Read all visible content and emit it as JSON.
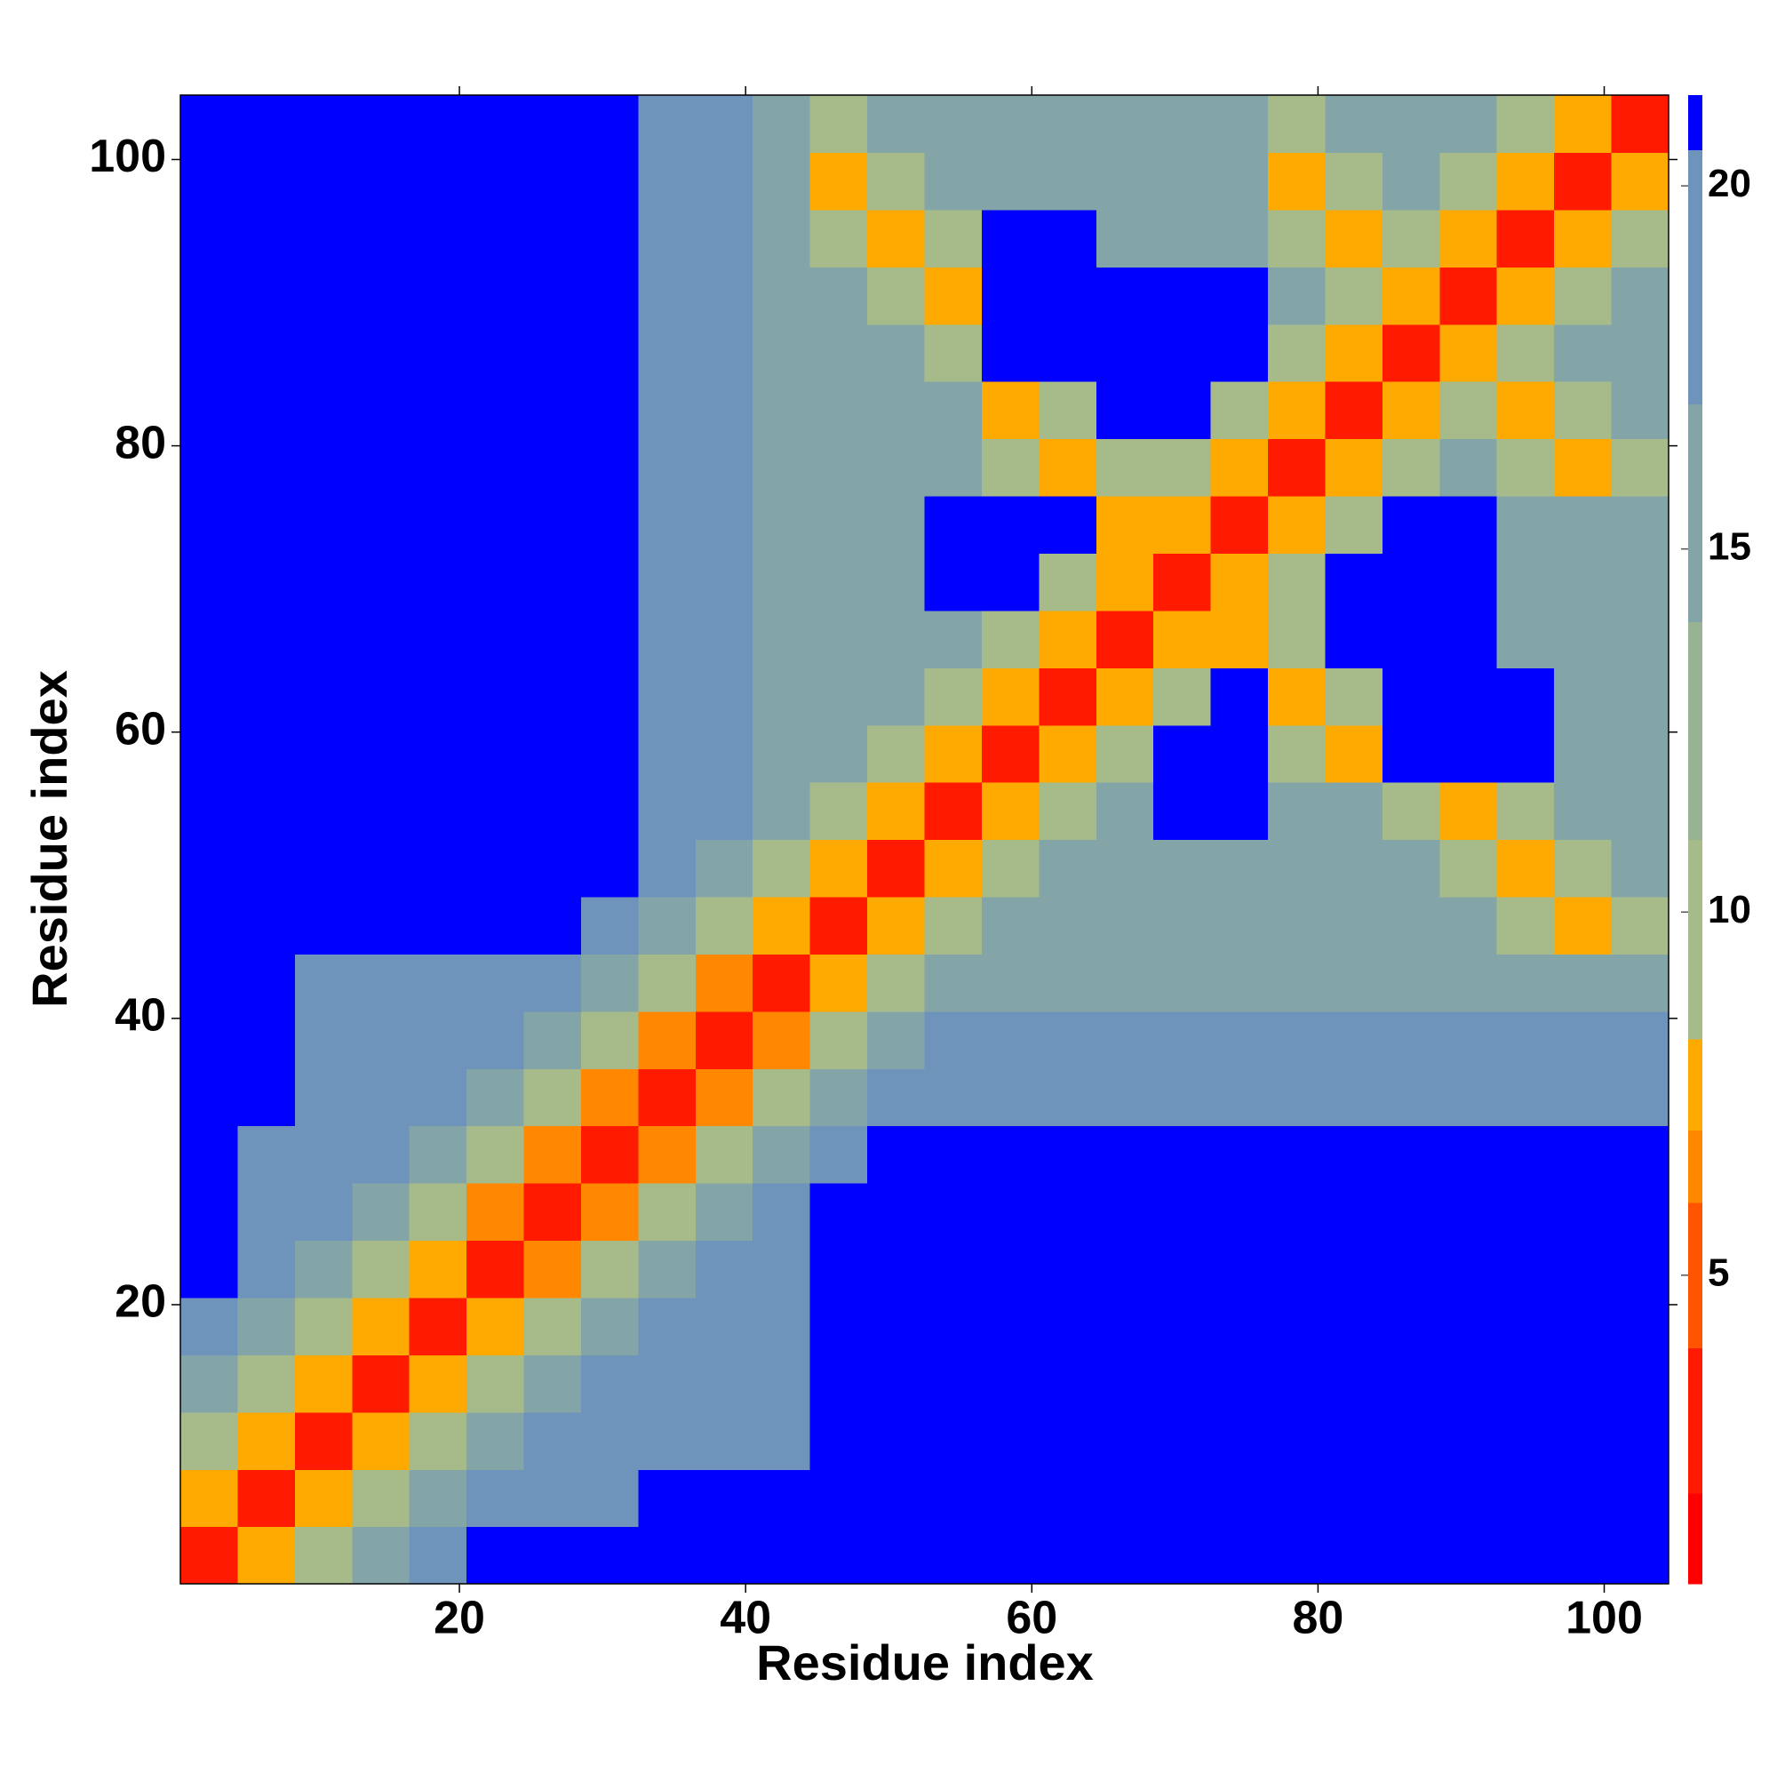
{
  "chart_data": {
    "type": "heatmap",
    "x_label": "Residue index",
    "y_label": "Residue index",
    "xlim": [
      0.5,
      104.5
    ],
    "ylim": [
      0.5,
      104.5
    ],
    "xticks": [
      20,
      40,
      60,
      80,
      100
    ],
    "yticks": [
      20,
      40,
      60,
      80,
      100
    ],
    "xbins": [
      0.5,
      4.5,
      8.5,
      12.5,
      16.5,
      20.5,
      24.5,
      28.5,
      32.5,
      36.5,
      40.5,
      44.5,
      48.5,
      52.5,
      56.5,
      60.5,
      64.5,
      68.5,
      72.5,
      76.5,
      80.5,
      84.5,
      88.5,
      92.5,
      96.5,
      100.5,
      104.5
    ],
    "ybins": [
      0.5,
      4.5,
      8.5,
      12.5,
      16.5,
      20.5,
      24.5,
      28.5,
      32.5,
      36.5,
      40.5,
      44.5,
      48.5,
      52.5,
      56.5,
      60.5,
      64.5,
      68.5,
      72.5,
      76.5,
      80.5,
      84.5,
      88.5,
      92.5,
      96.5,
      100.5,
      104.5
    ],
    "zlim": [
      0.75,
      21.25
    ],
    "zticks": [
      5,
      10,
      15,
      20
    ],
    "levels": [
      2,
      4,
      6,
      7,
      8.25,
      11,
      14,
      17,
      20.5
    ],
    "colors": [
      "#ff0000",
      "#ff1a00",
      "#ff5500",
      "#ff8800",
      "#ffaa00",
      "#a7bb8a",
      "#98b294",
      "#84a5a8",
      "#6f94bc",
      "#0000ff"
    ],
    "z": [
      [
        3,
        7.5,
        10,
        14,
        18,
        21,
        21,
        21,
        21,
        21,
        21,
        21,
        21,
        21,
        21,
        21,
        21,
        21,
        21,
        21,
        21,
        21,
        21,
        21,
        21,
        21
      ],
      [
        7.5,
        3,
        7.5,
        10,
        14,
        18,
        18,
        18,
        21,
        21,
        21,
        21,
        21,
        21,
        21,
        21,
        21,
        21,
        21,
        21,
        21,
        21,
        21,
        21,
        21,
        21
      ],
      [
        10,
        7.5,
        3,
        7.5,
        10,
        14,
        18,
        18,
        18,
        18,
        18,
        21,
        21,
        21,
        21,
        21,
        21,
        21,
        21,
        21,
        21,
        21,
        21,
        21,
        21,
        21
      ],
      [
        14,
        10,
        7.5,
        3,
        7.5,
        10,
        14,
        18,
        18,
        18,
        18,
        21,
        21,
        21,
        21,
        21,
        21,
        21,
        21,
        21,
        21,
        21,
        21,
        21,
        21,
        21
      ],
      [
        18,
        14,
        10,
        7.5,
        3,
        7.5,
        10,
        14,
        18,
        18,
        18,
        21,
        21,
        21,
        21,
        21,
        21,
        21,
        21,
        21,
        21,
        21,
        21,
        21,
        21,
        21
      ],
      [
        21,
        18,
        14,
        10,
        7.5,
        3,
        6,
        10,
        14,
        18,
        18,
        21,
        21,
        21,
        21,
        21,
        21,
        21,
        21,
        21,
        21,
        21,
        21,
        21,
        21,
        21
      ],
      [
        21,
        18,
        18,
        14,
        10,
        6,
        3,
        6,
        10,
        14,
        18,
        21,
        21,
        21,
        21,
        21,
        21,
        21,
        21,
        21,
        21,
        21,
        21,
        21,
        21,
        21
      ],
      [
        21,
        18,
        18,
        18,
        14,
        10,
        6,
        3,
        6,
        10,
        14,
        18,
        21,
        21,
        21,
        21,
        21,
        21,
        21,
        21,
        21,
        21,
        21,
        21,
        21,
        21
      ],
      [
        21,
        21,
        18,
        18,
        18,
        14,
        10,
        6,
        3,
        6,
        10,
        14,
        18,
        18,
        18,
        18,
        18,
        18,
        18,
        18,
        18,
        18,
        18,
        18,
        18,
        18
      ],
      [
        21,
        21,
        18,
        18,
        18,
        18,
        14,
        10,
        6,
        3,
        6,
        10,
        14,
        18,
        18,
        18,
        18,
        18,
        18,
        18,
        18,
        18,
        18,
        18,
        18,
        18
      ],
      [
        21,
        21,
        18,
        18,
        18,
        18,
        18,
        14,
        10,
        6,
        3,
        7.5,
        10,
        14,
        16,
        16,
        16,
        16,
        16,
        14,
        14,
        14,
        14,
        14,
        14,
        14
      ],
      [
        21,
        21,
        21,
        21,
        21,
        21,
        21,
        18,
        14,
        10,
        7.5,
        3,
        7.5,
        10,
        14,
        16,
        16,
        16,
        16,
        16,
        16,
        16,
        16,
        10,
        7.5,
        10
      ],
      [
        21,
        21,
        21,
        21,
        21,
        21,
        21,
        21,
        18,
        14,
        10,
        7.5,
        3,
        7.5,
        10,
        14,
        16,
        16,
        16,
        16,
        16,
        16,
        10,
        7.5,
        10,
        16
      ],
      [
        21,
        21,
        21,
        21,
        21,
        21,
        21,
        21,
        18,
        18,
        14,
        10,
        7.5,
        3,
        7.5,
        10,
        14,
        21,
        21,
        16,
        16,
        10,
        7.5,
        10,
        16,
        16
      ],
      [
        21,
        21,
        21,
        21,
        21,
        21,
        21,
        21,
        18,
        18,
        16,
        14,
        10,
        7.5,
        3,
        7.5,
        10,
        21,
        21,
        10,
        7.5,
        21,
        21,
        21,
        16,
        16
      ],
      [
        21,
        21,
        21,
        21,
        21,
        21,
        21,
        21,
        18,
        18,
        16,
        16,
        14,
        10,
        7.5,
        3,
        7.5,
        10,
        21,
        7.5,
        10,
        21,
        21,
        21,
        16,
        16
      ],
      [
        21,
        21,
        21,
        21,
        21,
        21,
        21,
        21,
        18,
        18,
        16,
        16,
        16,
        14,
        10,
        7.5,
        3,
        7.5,
        7.5,
        10,
        21,
        21,
        21,
        16,
        16,
        16
      ],
      [
        21,
        21,
        21,
        21,
        21,
        21,
        21,
        21,
        18,
        18,
        16,
        16,
        16,
        21,
        21,
        10,
        7.5,
        3,
        7.5,
        10,
        21,
        21,
        21,
        16,
        16,
        16
      ],
      [
        21,
        21,
        21,
        21,
        21,
        21,
        21,
        21,
        18,
        18,
        16,
        16,
        16,
        21,
        21,
        21,
        7.5,
        7.5,
        3,
        7.5,
        10,
        21,
        21,
        16,
        16,
        16
      ],
      [
        21,
        21,
        21,
        21,
        21,
        21,
        21,
        21,
        18,
        18,
        14,
        16,
        16,
        16,
        10,
        7.5,
        10,
        10,
        7.5,
        3,
        7.5,
        10,
        14,
        10,
        7.5,
        10
      ],
      [
        21,
        21,
        21,
        21,
        21,
        21,
        21,
        21,
        18,
        18,
        14,
        16,
        16,
        16,
        7.5,
        10,
        21,
        21,
        10,
        7.5,
        3,
        7.5,
        10,
        7.5,
        10,
        16
      ],
      [
        21,
        21,
        21,
        21,
        21,
        21,
        21,
        21,
        18,
        18,
        14,
        16,
        16,
        10,
        21,
        21,
        21,
        21,
        21,
        10,
        7.5,
        3,
        7.5,
        10,
        14,
        16
      ],
      [
        21,
        21,
        21,
        21,
        21,
        21,
        21,
        21,
        18,
        18,
        14,
        16,
        10,
        7.5,
        21,
        21,
        21,
        21,
        21,
        14,
        10,
        7.5,
        3,
        7.5,
        10,
        14
      ],
      [
        21,
        21,
        21,
        21,
        21,
        21,
        21,
        21,
        18,
        18,
        14,
        10,
        7.5,
        10,
        21,
        21,
        16,
        16,
        16,
        10,
        7.5,
        10,
        7.5,
        3,
        7.5,
        10
      ],
      [
        21,
        21,
        21,
        21,
        21,
        21,
        21,
        21,
        18,
        18,
        14,
        7.5,
        10,
        16,
        16,
        16,
        16,
        16,
        16,
        7.5,
        10,
        14,
        10,
        7.5,
        3,
        7.5
      ],
      [
        21,
        21,
        21,
        21,
        21,
        21,
        21,
        21,
        18,
        18,
        14,
        10,
        16,
        16,
        16,
        16,
        16,
        16,
        16,
        10,
        16,
        16,
        14,
        10,
        7.5,
        3
      ]
    ]
  }
}
